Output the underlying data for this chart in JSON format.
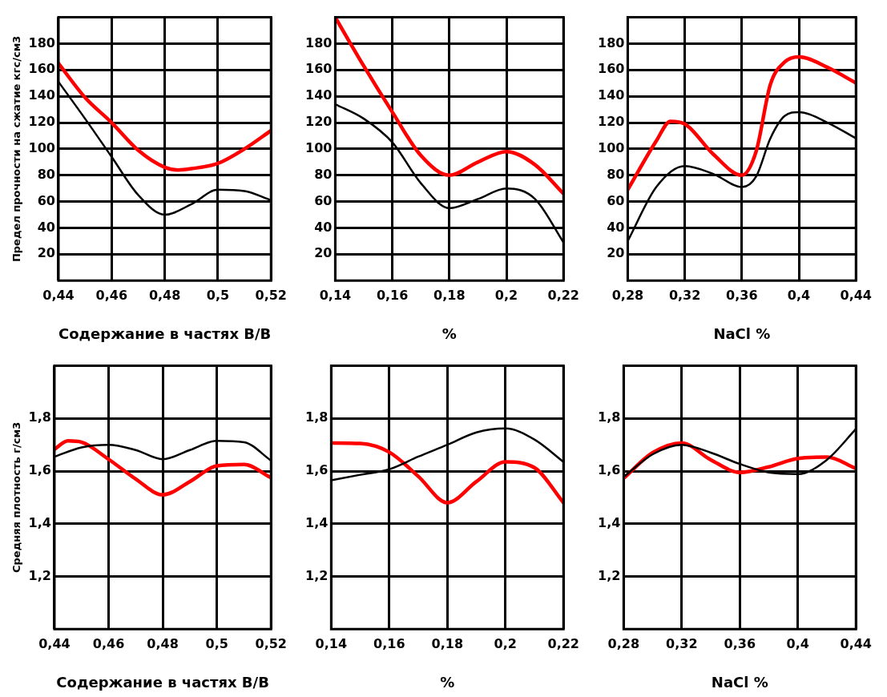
{
  "chart_data": [
    {
      "type": "line",
      "ylabel": "Предел прочности на сжатие кгс/см3",
      "xlabel": "Содержание в частях В/В",
      "xlim": [
        0.44,
        0.52
      ],
      "xticks": [
        {
          "value": 0.44,
          "label": "0,44"
        },
        {
          "value": 0.46,
          "label": "0,46"
        },
        {
          "value": 0.48,
          "label": "0,48"
        },
        {
          "value": 0.5,
          "label": "0,5"
        },
        {
          "value": 0.52,
          "label": "0,52"
        }
      ],
      "ylim": [
        0,
        200
      ],
      "yticks": [
        20,
        40,
        60,
        80,
        100,
        120,
        140,
        160,
        180
      ],
      "grid": true,
      "marker": "none",
      "series": [
        {
          "color": "#000000",
          "x": [
            0.44,
            0.45,
            0.46,
            0.47,
            0.48,
            0.49,
            0.5,
            0.51,
            0.52
          ],
          "values": [
            151,
            123,
            94,
            65,
            50,
            58,
            69,
            68,
            61
          ]
        },
        {
          "color": "#ff0000",
          "x": [
            0.44,
            0.45,
            0.46,
            0.47,
            0.48,
            0.485,
            0.49,
            0.5,
            0.51,
            0.52
          ],
          "values": [
            165,
            139,
            120,
            99,
            86,
            84,
            85,
            89,
            100,
            114
          ]
        }
      ]
    },
    {
      "type": "line",
      "xlabel": "%",
      "xlim": [
        0.14,
        0.22
      ],
      "xticks": [
        {
          "value": 0.14,
          "label": "0,14"
        },
        {
          "value": 0.16,
          "label": "0,16"
        },
        {
          "value": 0.18,
          "label": "0,18"
        },
        {
          "value": 0.2,
          "label": "0,2"
        },
        {
          "value": 0.22,
          "label": "0,22"
        }
      ],
      "ylim": [
        0,
        200
      ],
      "yticks": [
        20,
        40,
        60,
        80,
        100,
        120,
        140,
        160,
        180
      ],
      "grid": true,
      "marker": "none",
      "series": [
        {
          "color": "#000000",
          "x": [
            0.14,
            0.15,
            0.16,
            0.17,
            0.18,
            0.19,
            0.2,
            0.21,
            0.22
          ],
          "values": [
            134,
            123,
            105,
            74,
            55,
            62,
            70,
            62,
            29
          ]
        },
        {
          "color": "#ff0000",
          "x": [
            0.14,
            0.15,
            0.16,
            0.17,
            0.18,
            0.19,
            0.2,
            0.21,
            0.22
          ],
          "values": [
            200,
            163,
            128,
            95,
            80,
            90,
            98,
            88,
            66
          ]
        }
      ]
    },
    {
      "type": "line",
      "xlabel": "NaCl %",
      "xlim": [
        0.28,
        0.44
      ],
      "xticks": [
        {
          "value": 0.28,
          "label": "0,28"
        },
        {
          "value": 0.32,
          "label": "0,32"
        },
        {
          "value": 0.36,
          "label": "0,36"
        },
        {
          "value": 0.4,
          "label": "0,4"
        },
        {
          "value": 0.44,
          "label": "0,44"
        }
      ],
      "ylim": [
        0,
        200
      ],
      "yticks": [
        20,
        40,
        60,
        80,
        100,
        120,
        140,
        160,
        180
      ],
      "grid": true,
      "marker": "none",
      "series": [
        {
          "color": "#000000",
          "x": [
            0.28,
            0.3,
            0.32,
            0.34,
            0.36,
            0.37,
            0.38,
            0.39,
            0.4,
            0.42,
            0.44
          ],
          "values": [
            30,
            71,
            87,
            81,
            71,
            79,
            108,
            125,
            128,
            120,
            108
          ]
        },
        {
          "color": "#ff0000",
          "x": [
            0.28,
            0.3,
            0.31,
            0.32,
            0.34,
            0.36,
            0.37,
            0.38,
            0.39,
            0.4,
            0.42,
            0.44
          ],
          "values": [
            69,
            106,
            121,
            119,
            96,
            80,
            98,
            149,
            166,
            170,
            162,
            150
          ]
        }
      ]
    },
    {
      "type": "line",
      "ylabel": "Средняя плотность г/см3",
      "xlabel": "Содержание в частях В/В",
      "xlim": [
        0.44,
        0.52
      ],
      "xticks": [
        {
          "value": 0.44,
          "label": "0,44"
        },
        {
          "value": 0.46,
          "label": "0,46"
        },
        {
          "value": 0.48,
          "label": "0,48"
        },
        {
          "value": 0.5,
          "label": "0,5"
        },
        {
          "value": 0.52,
          "label": "0,52"
        }
      ],
      "ylim": [
        1.0,
        2.0
      ],
      "yticks": [
        {
          "value": 1.2,
          "label": "1,2"
        },
        {
          "value": 1.4,
          "label": "1,4"
        },
        {
          "value": 1.6,
          "label": "1,6"
        },
        {
          "value": 1.8,
          "label": "1,8"
        }
      ],
      "grid": true,
      "marker": "none",
      "series": [
        {
          "color": "#000000",
          "x": [
            0.44,
            0.45,
            0.46,
            0.47,
            0.48,
            0.49,
            0.5,
            0.51,
            0.52
          ],
          "values": [
            1.655,
            1.69,
            1.7,
            1.68,
            1.645,
            1.68,
            1.715,
            1.71,
            1.64
          ]
        },
        {
          "color": "#ff0000",
          "x": [
            0.44,
            0.445,
            0.45,
            0.46,
            0.47,
            0.48,
            0.49,
            0.5,
            0.51,
            0.52
          ],
          "values": [
            1.683,
            1.715,
            1.71,
            1.645,
            1.57,
            1.51,
            1.56,
            1.62,
            1.625,
            1.575
          ]
        }
      ]
    },
    {
      "type": "line",
      "xlabel": "%",
      "xlim": [
        0.14,
        0.22
      ],
      "xticks": [
        {
          "value": 0.14,
          "label": "0,14"
        },
        {
          "value": 0.16,
          "label": "0,16"
        },
        {
          "value": 0.18,
          "label": "0,18"
        },
        {
          "value": 0.2,
          "label": "0,2"
        },
        {
          "value": 0.22,
          "label": "0,22"
        }
      ],
      "ylim": [
        1.0,
        2.0
      ],
      "yticks": [
        {
          "value": 1.2,
          "label": "1,2"
        },
        {
          "value": 1.4,
          "label": "1,4"
        },
        {
          "value": 1.6,
          "label": "1,6"
        },
        {
          "value": 1.8,
          "label": "1,8"
        }
      ],
      "grid": true,
      "marker": "none",
      "series": [
        {
          "color": "#000000",
          "x": [
            0.14,
            0.15,
            0.16,
            0.17,
            0.18,
            0.19,
            0.2,
            0.21,
            0.22
          ],
          "values": [
            1.565,
            1.586,
            1.607,
            1.655,
            1.7,
            1.747,
            1.762,
            1.72,
            1.635
          ]
        },
        {
          "color": "#ff0000",
          "x": [
            0.14,
            0.15,
            0.16,
            0.17,
            0.18,
            0.19,
            0.2,
            0.21,
            0.22
          ],
          "values": [
            1.707,
            1.705,
            1.672,
            1.58,
            1.48,
            1.56,
            1.635,
            1.613,
            1.48
          ]
        }
      ]
    },
    {
      "type": "line",
      "xlabel": "NaCl %",
      "xlim": [
        0.28,
        0.44
      ],
      "xticks": [
        {
          "value": 0.28,
          "label": "0,28"
        },
        {
          "value": 0.32,
          "label": "0,32"
        },
        {
          "value": 0.36,
          "label": "0,36"
        },
        {
          "value": 0.4,
          "label": "0,4"
        },
        {
          "value": 0.44,
          "label": "0,44"
        }
      ],
      "ylim": [
        1.0,
        2.0
      ],
      "yticks": [
        {
          "value": 1.2,
          "label": "1,2"
        },
        {
          "value": 1.4,
          "label": "1,4"
        },
        {
          "value": 1.6,
          "label": "1,6"
        },
        {
          "value": 1.8,
          "label": "1,8"
        }
      ],
      "grid": true,
      "marker": "none",
      "series": [
        {
          "color": "#000000",
          "x": [
            0.28,
            0.3,
            0.32,
            0.34,
            0.36,
            0.38,
            0.4,
            0.42,
            0.44
          ],
          "values": [
            1.578,
            1.664,
            1.7,
            1.67,
            1.627,
            1.595,
            1.589,
            1.643,
            1.76
          ]
        },
        {
          "color": "#ff0000",
          "x": [
            0.28,
            0.3,
            0.32,
            0.34,
            0.36,
            0.38,
            0.4,
            0.42,
            0.44
          ],
          "values": [
            1.573,
            1.67,
            1.707,
            1.643,
            1.595,
            1.616,
            1.648,
            1.653,
            1.61
          ]
        }
      ]
    }
  ]
}
